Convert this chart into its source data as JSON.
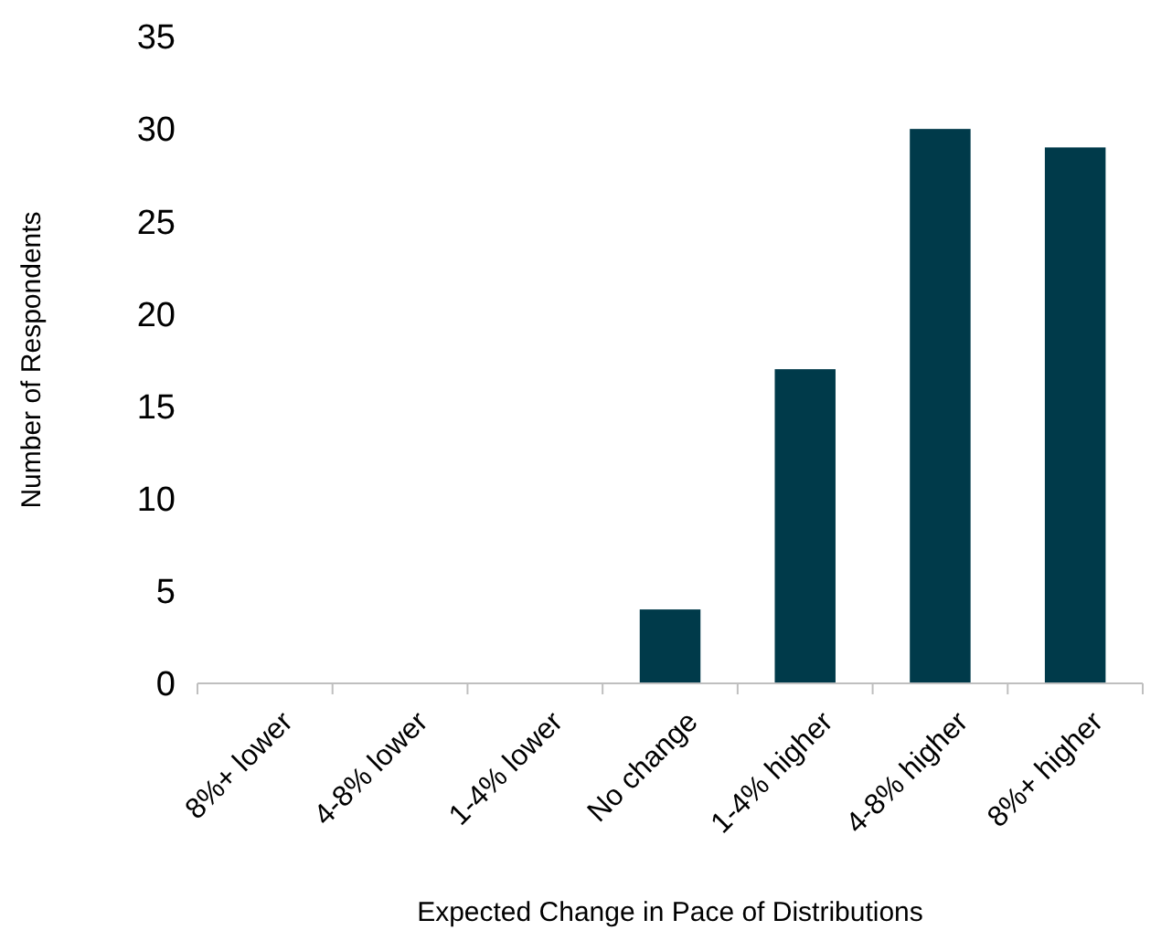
{
  "chart_data": {
    "type": "bar",
    "xlabel": "Expected Change in Pace of Distributions",
    "ylabel": "Number of Respondents",
    "categories": [
      "8%+ lower",
      "4-8% lower",
      "1-4% lower",
      "No change",
      "1-4% higher",
      "4-8% higher",
      "8%+ higher"
    ],
    "values": [
      0,
      0,
      0,
      4,
      17,
      30,
      29
    ],
    "color": "#003a4a",
    "ylim": [
      0,
      35
    ],
    "yticks": [
      0,
      5,
      10,
      15,
      20,
      25,
      30,
      35
    ],
    "grid": false
  }
}
